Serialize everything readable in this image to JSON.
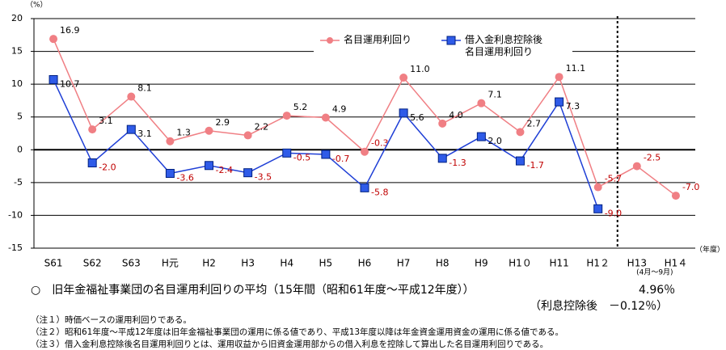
{
  "chart_data": {
    "type": "line",
    "y_unit": "（%）",
    "x_unit": "（年度）",
    "x_note": "(4月～9月)",
    "categories": [
      "S61",
      "S62",
      "S63",
      "H元",
      "H2",
      "H3",
      "H4",
      "H5",
      "H6",
      "H7",
      "H8",
      "H9",
      "H1０",
      "H11",
      "H1２",
      "H13",
      "H1４"
    ],
    "series": [
      {
        "name": "名目運用利回り",
        "color": "#f07f84",
        "values": [
          16.9,
          3.1,
          8.1,
          1.3,
          2.9,
          2.2,
          5.2,
          4.9,
          -0.3,
          11.0,
          4.0,
          7.1,
          2.7,
          11.1,
          -5.7,
          -2.5,
          -7.0
        ],
        "value_labels": [
          "16.9",
          "3.1",
          "8.1",
          "1.3",
          "2.9",
          "2.2",
          "5.2",
          "4.9",
          "-0.3",
          "11.0",
          "4.0",
          "7.1",
          "2.7",
          "11.1",
          "-5.7",
          "-2.5",
          "-7.0"
        ]
      },
      {
        "name": "借入金利息控除後\n名目運用利回り",
        "color": "#1f3fd6",
        "values": [
          10.7,
          -2.0,
          3.1,
          -3.6,
          -2.4,
          -3.5,
          -0.5,
          -0.7,
          -5.8,
          5.6,
          -1.3,
          2.0,
          -1.7,
          7.3,
          -9.0,
          null,
          null
        ],
        "value_labels": [
          "10.7",
          "-2.0",
          "3.1",
          "-3.6",
          "-2.4",
          "-3.5",
          "-0.5",
          "-0.7",
          "-5.8",
          "5.6",
          "-1.3",
          "2.0",
          "-1.7",
          "7.3",
          "-9.0",
          null,
          null
        ]
      }
    ],
    "ylim": [
      -15,
      20
    ],
    "yticks": [
      -15,
      -10,
      -5,
      0,
      5,
      10,
      15,
      20
    ],
    "grid": true
  },
  "summary": {
    "text": "○　旧年金福祉事業団の名目運用利回りの平均（15年間（昭和61年度～平成12年度））",
    "average": "4.96％",
    "net": "（利息控除後　－0.12％）"
  },
  "notes": [
    "（注１）時価ベースの運用利回りである。",
    "（注２）昭和61年度～平成12年度は旧年金福祉事業団の運用に係る値であり、平成13年度以降は年金資金運用資金の運用に係る値である。",
    "（注３）借入金利息控除後名目運用利回りとは、運用収益から旧資金運用部からの借入利息を控除して算出した名目運用利回りである。"
  ]
}
